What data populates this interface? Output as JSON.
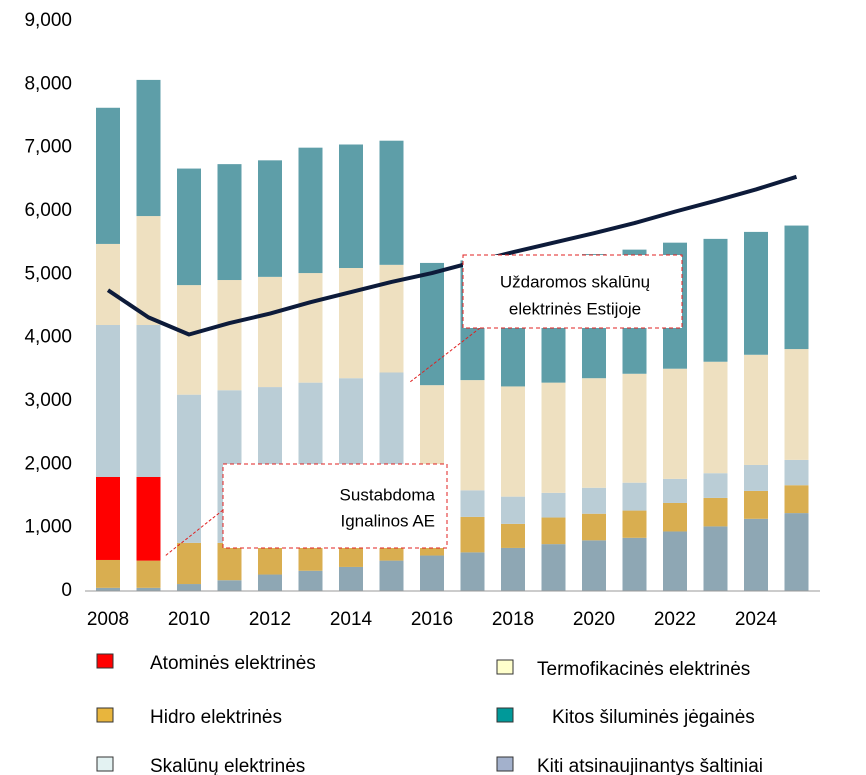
{
  "chart_data": {
    "type": "bar",
    "stacked": true,
    "categories": [
      "2008",
      null,
      "2010",
      null,
      "2012",
      null,
      "2014",
      null,
      "2016",
      null,
      "2018",
      null,
      "2020",
      null,
      "2022",
      null,
      "2024",
      null
    ],
    "series": [
      {
        "name": "Kiti atsinaujinantys šaltiniai",
        "color": "#8ea7b4",
        "legend_color": "#a3b1cc",
        "values": [
          50,
          50,
          110,
          170,
          260,
          320,
          380,
          480,
          560,
          610,
          680,
          740,
          800,
          840,
          940,
          1020,
          1140,
          1230
        ]
      },
      {
        "name": "Hidro elektrinės",
        "color": "#d9ae50",
        "legend_color": "#e8b53d",
        "values": [
          440,
          430,
          650,
          590,
          500,
          440,
          380,
          280,
          530,
          560,
          380,
          420,
          420,
          430,
          450,
          450,
          440,
          440
        ]
      },
      {
        "name": "Atominės elektrinės",
        "color": "#ff0000",
        "legend_color": "#ff0000",
        "values": [
          1310,
          1320,
          0,
          0,
          0,
          0,
          0,
          0,
          0,
          0,
          0,
          0,
          0,
          0,
          0,
          0,
          0,
          0
        ]
      },
      {
        "name": "Skalūnų elektrinės",
        "color": "#bacdd6",
        "legend_color": "#e3f2f2",
        "values": [
          2400,
          2400,
          2340,
          2410,
          2460,
          2530,
          2600,
          2690,
          440,
          420,
          430,
          390,
          410,
          440,
          380,
          390,
          410,
          400
        ]
      },
      {
        "name": "Termofikacinės elektrinės",
        "color": "#eee0c0",
        "legend_color": "#ffffcc",
        "values": [
          1280,
          1720,
          1730,
          1740,
          1740,
          1730,
          1740,
          1700,
          1720,
          1740,
          1740,
          1740,
          1730,
          1720,
          1740,
          1760,
          1740,
          1750
        ]
      },
      {
        "name": "Kitos šiluminės jėgainės",
        "color": "#5e9ea8",
        "legend_color": "#009999",
        "values": [
          2150,
          2150,
          1840,
          1830,
          1840,
          1980,
          1950,
          1960,
          1930,
          1890,
          2020,
          1990,
          1960,
          1960,
          1990,
          1940,
          1940,
          1950
        ]
      }
    ],
    "line": {
      "color": "#0d1b3a",
      "values": [
        4750,
        4320,
        4050,
        4230,
        4380,
        4560,
        4720,
        4880,
        5020,
        5190,
        5350,
        5500,
        5650,
        5810,
        5990,
        6160,
        6340,
        6540
      ]
    },
    "ylim": [
      0,
      9000
    ],
    "yticks": [
      0,
      {
        "value": 1000,
        "label": "1,000"
      },
      {
        "value": 2000,
        "label": "2,000"
      },
      {
        "value": 3000,
        "label": "3,000"
      },
      {
        "value": 4000,
        "label": "4,000"
      },
      {
        "value": 5000,
        "label": "5,000"
      },
      {
        "value": 6000,
        "label": "6,000"
      },
      {
        "value": 7000,
        "label": "7,000"
      },
      {
        "value": 8000,
        "label": "8,000"
      },
      {
        "value": 9000,
        "label": "9,000"
      }
    ],
    "annotations": [
      {
        "lines": [
          "Uždaromos skalūnų",
          "elektrinės Estijoje"
        ]
      },
      {
        "lines": [
          "Sustabdoma",
          "Ignalinos AE"
        ]
      }
    ]
  }
}
